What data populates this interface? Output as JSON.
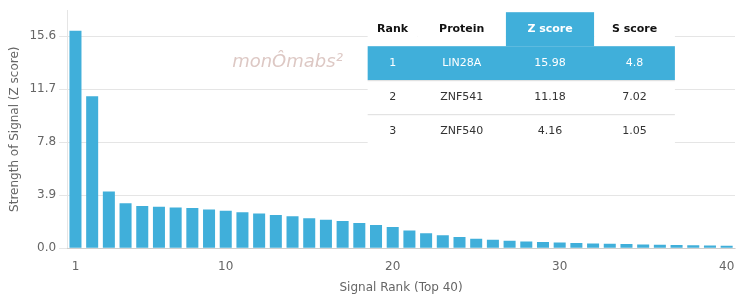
{
  "chart_data": {
    "type": "bar",
    "xlabel": "Signal Rank (Top 40)",
    "ylabel": "Strength of Signal (Z score)",
    "categories": [
      "1",
      null,
      null,
      null,
      null,
      null,
      null,
      null,
      null,
      "10",
      null,
      null,
      null,
      null,
      null,
      null,
      null,
      null,
      null,
      "20",
      null,
      null,
      null,
      null,
      null,
      null,
      null,
      null,
      null,
      "30",
      null,
      null,
      null,
      null,
      null,
      null,
      null,
      null,
      null,
      "40"
    ],
    "values": [
      15.98,
      11.18,
      4.16,
      3.3,
      3.1,
      3.05,
      3.0,
      2.95,
      2.85,
      2.75,
      2.65,
      2.55,
      2.45,
      2.35,
      2.2,
      2.1,
      2.0,
      1.85,
      1.7,
      1.55,
      1.3,
      1.1,
      0.95,
      0.82,
      0.7,
      0.62,
      0.55,
      0.5,
      0.46,
      0.42,
      0.38,
      0.35,
      0.32,
      0.3,
      0.28,
      0.26,
      0.24,
      0.22,
      0.2,
      0.18
    ],
    "color": "#40AFDA",
    "ylim": [
      0,
      17.5
    ],
    "yticks": [
      {
        "value": 0,
        "label": "0.0"
      },
      3.9,
      7.8,
      11.7,
      15.6
    ],
    "grid": true,
    "annotations": [
      {
        "text": "monÔmabs²",
        "color": "#ddc8c4"
      }
    ],
    "table": {
      "headers": [
        "Rank",
        "Protein",
        "Z score",
        "S score"
      ],
      "rows": [
        [
          "1",
          "LIN28A",
          "15.98",
          "4.8"
        ],
        [
          "2",
          "ZNF541",
          "11.18",
          "7.02"
        ],
        [
          "3",
          "ZNF540",
          "4.16",
          "1.05"
        ]
      ],
      "color": "#40AFDA"
    }
  }
}
